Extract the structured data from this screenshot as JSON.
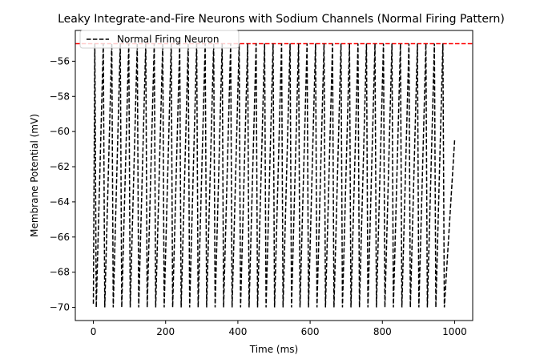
{
  "chart_data": {
    "type": "line",
    "title": "Leaky Integrate-and-Fire Neurons with Sodium Channels (Normal Firing Pattern)",
    "xlabel": "Time (ms)",
    "ylabel": "Membrane Potential (mV)",
    "xlim": [
      -50,
      1050
    ],
    "ylim": [
      -70.75,
      -54.25
    ],
    "x_ticks": [
      0,
      200,
      400,
      600,
      800,
      1000
    ],
    "y_ticks": [
      -70,
      -68,
      -66,
      -64,
      -62,
      -60,
      -58,
      -56
    ],
    "grid": false,
    "legend_position": "upper-left",
    "series": [
      {
        "name": "Normal Firing Neuron",
        "color": "#000000",
        "line_style": "dashed",
        "spike_peaks_x": [
          0,
          23.5,
          47,
          70.5,
          94,
          117.5,
          141,
          164.5,
          188,
          211.5,
          235,
          258.5,
          282,
          305.5,
          329,
          352.5,
          376,
          399.5,
          423,
          446.5,
          470,
          493.5,
          517,
          540.5,
          564,
          587.5,
          611,
          634.5,
          658,
          681.5,
          705,
          728.5,
          752,
          775.5,
          799,
          822.5,
          846,
          869.5,
          893,
          916.5,
          940,
          963.5
        ],
        "reset_value": -70,
        "peak_value": -55,
        "end_point": {
          "x": 1000,
          "y": -60.5
        }
      }
    ],
    "threshold_line": {
      "y": -55,
      "color": "#ff0000",
      "line_style": "dashed"
    }
  }
}
